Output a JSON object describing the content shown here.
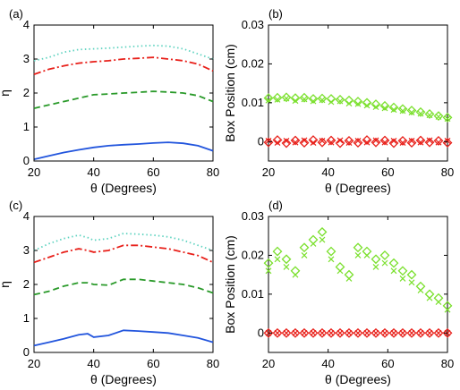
{
  "chart_data": [
    {
      "id": "a",
      "panel_label": "(a)",
      "type": "line",
      "xlabel": "θ (Degrees)",
      "ylabel": "η",
      "xlim": [
        20,
        80
      ],
      "ylim": [
        0,
        4
      ],
      "xticks": [
        20,
        40,
        60,
        80
      ],
      "yticks": [
        0,
        1,
        2,
        3,
        4
      ],
      "x": [
        20,
        25,
        30,
        35,
        40,
        45,
        50,
        55,
        60,
        65,
        70,
        75,
        80
      ],
      "series": [
        {
          "style": "dotted",
          "color": "#5fd3c0",
          "values": [
            2.95,
            3.05,
            3.2,
            3.28,
            3.3,
            3.32,
            3.35,
            3.38,
            3.4,
            3.38,
            3.3,
            3.15,
            3.0
          ]
        },
        {
          "style": "dashdot",
          "color": "#e8201a",
          "values": [
            2.55,
            2.7,
            2.8,
            2.88,
            2.92,
            2.95,
            3.0,
            3.02,
            3.05,
            3.0,
            2.95,
            2.85,
            2.65
          ]
        },
        {
          "style": "dashed",
          "color": "#2a9a2a",
          "values": [
            1.55,
            1.65,
            1.75,
            1.85,
            1.95,
            1.97,
            2.0,
            2.02,
            2.05,
            2.03,
            2.0,
            1.92,
            1.75
          ]
        },
        {
          "style": "solid",
          "color": "#2255dd",
          "values": [
            0.05,
            0.15,
            0.25,
            0.33,
            0.4,
            0.45,
            0.48,
            0.5,
            0.53,
            0.55,
            0.52,
            0.45,
            0.3
          ]
        }
      ]
    },
    {
      "id": "b",
      "panel_label": "(b)",
      "type": "scatter",
      "xlabel": "θ (Degrees)",
      "ylabel": "Box Position (cm)",
      "xlim": [
        20,
        80
      ],
      "ylim": [
        -0.005,
        0.03
      ],
      "xticks": [
        20,
        40,
        60,
        80
      ],
      "yticks": [
        0,
        0.01,
        0.02,
        0.03
      ],
      "ytick_labels": [
        "0",
        "0.01",
        "0.02",
        "0.03"
      ],
      "x": [
        20,
        23,
        26,
        29,
        32,
        35,
        38,
        41,
        44,
        47,
        50,
        53,
        56,
        59,
        62,
        65,
        68,
        71,
        74,
        77,
        80
      ],
      "series": [
        {
          "marker": "diamond",
          "color": "#7be02e",
          "values": [
            0.0112,
            0.0113,
            0.0114,
            0.0112,
            0.0113,
            0.011,
            0.0111,
            0.011,
            0.0108,
            0.0106,
            0.0103,
            0.01,
            0.0096,
            0.0092,
            0.0088,
            0.0084,
            0.008,
            0.0076,
            0.0071,
            0.0066,
            0.0062
          ]
        },
        {
          "marker": "x",
          "color": "#7be02e",
          "values": [
            0.0106,
            0.0108,
            0.0111,
            0.0105,
            0.0109,
            0.0104,
            0.0107,
            0.0102,
            0.0104,
            0.0098,
            0.0097,
            0.0093,
            0.0089,
            0.0086,
            0.0082,
            0.0079,
            0.0075,
            0.0072,
            0.0068,
            0.0064,
            0.0059
          ]
        },
        {
          "marker": "diamond",
          "color": "#e8201a",
          "values": [
            -0.0002,
            0.0004,
            -0.0004,
            0.0003,
            -0.0003,
            0.0004,
            -0.0002,
            0.0003,
            -0.0004,
            0.0002,
            -0.0003,
            0.0004,
            -0.0002,
            0.0003,
            -0.0004,
            0.0002,
            -0.0003,
            0.0003,
            -0.0002,
            0.0002,
            -0.0003
          ]
        },
        {
          "marker": "x",
          "color": "#e8201a",
          "values": [
            0.0002,
            -0.0003,
            0.0002,
            -0.0002,
            0.0003,
            -0.0003,
            0.0002,
            -0.0002,
            0.0003,
            -0.0003,
            0.0002,
            -0.0002,
            0.0003,
            -0.0002,
            0.0002,
            -0.0003,
            0.0002,
            -0.0002,
            0.0003,
            -0.0002,
            0.0002
          ]
        }
      ]
    },
    {
      "id": "c",
      "panel_label": "(c)",
      "type": "line",
      "xlabel": "θ (Degrees)",
      "ylabel": "η",
      "xlim": [
        20,
        80
      ],
      "ylim": [
        0,
        4
      ],
      "xticks": [
        20,
        40,
        60,
        80
      ],
      "yticks": [
        0,
        1,
        2,
        3,
        4
      ],
      "x": [
        20,
        25,
        30,
        35,
        38,
        40,
        45,
        50,
        55,
        60,
        65,
        70,
        75,
        80
      ],
      "series": [
        {
          "style": "dotted",
          "color": "#5fd3c0",
          "values": [
            3.0,
            3.2,
            3.35,
            3.45,
            3.38,
            3.3,
            3.35,
            3.5,
            3.48,
            3.45,
            3.4,
            3.3,
            3.15,
            3.0
          ]
        },
        {
          "style": "dashdot",
          "color": "#e8201a",
          "values": [
            2.65,
            2.8,
            2.95,
            3.05,
            3.0,
            2.95,
            3.0,
            3.15,
            3.15,
            3.1,
            3.05,
            2.95,
            2.85,
            2.65
          ]
        },
        {
          "style": "dashed",
          "color": "#2a9a2a",
          "values": [
            1.7,
            1.8,
            1.95,
            2.05,
            2.05,
            2.0,
            1.98,
            2.15,
            2.15,
            2.1,
            2.05,
            2.0,
            1.9,
            1.75
          ]
        },
        {
          "style": "solid",
          "color": "#2255dd",
          "values": [
            0.2,
            0.3,
            0.4,
            0.52,
            0.55,
            0.45,
            0.5,
            0.65,
            0.63,
            0.6,
            0.57,
            0.5,
            0.43,
            0.3
          ]
        }
      ]
    },
    {
      "id": "d",
      "panel_label": "(d)",
      "type": "scatter",
      "xlabel": "θ (Degrees)",
      "ylabel": "Box Position (cm)",
      "xlim": [
        20,
        80
      ],
      "ylim": [
        -0.005,
        0.03
      ],
      "xticks": [
        20,
        40,
        60,
        80
      ],
      "yticks": [
        0,
        0.01,
        0.02,
        0.03
      ],
      "ytick_labels": [
        "0",
        "0.01",
        "0.02",
        "0.03"
      ],
      "x": [
        20,
        23,
        26,
        29,
        32,
        35,
        38,
        41,
        44,
        47,
        50,
        53,
        56,
        59,
        62,
        65,
        68,
        71,
        74,
        77,
        80
      ],
      "series": [
        {
          "marker": "diamond",
          "color": "#7be02e",
          "values": [
            0.018,
            0.021,
            0.019,
            0.016,
            0.022,
            0.024,
            0.026,
            0.021,
            0.017,
            0.015,
            0.022,
            0.021,
            0.019,
            0.02,
            0.018,
            0.016,
            0.015,
            0.012,
            0.01,
            0.009,
            0.007
          ]
        },
        {
          "marker": "x",
          "color": "#7be02e",
          "values": [
            0.016,
            0.019,
            0.017,
            0.015,
            0.02,
            0.023,
            0.024,
            0.019,
            0.016,
            0.014,
            0.02,
            0.02,
            0.017,
            0.018,
            0.016,
            0.014,
            0.013,
            0.011,
            0.009,
            0.008,
            0.006
          ]
        },
        {
          "marker": "diamond",
          "color": "#e8201a",
          "values": [
            0,
            0,
            0,
            0,
            0,
            0,
            0,
            0,
            0,
            0,
            0,
            0,
            0,
            0,
            0,
            0,
            0,
            0,
            0,
            0,
            0
          ]
        },
        {
          "marker": "x",
          "color": "#e8201a",
          "values": [
            0,
            0,
            0,
            0,
            0,
            0,
            0,
            0,
            0,
            0,
            0,
            0,
            0,
            0,
            0,
            0,
            0,
            0,
            0,
            0,
            0
          ]
        }
      ]
    }
  ]
}
